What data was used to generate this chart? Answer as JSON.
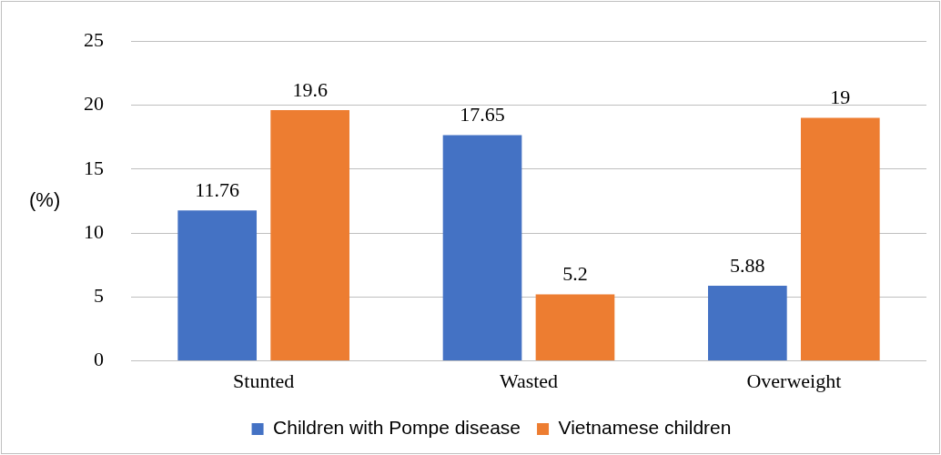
{
  "chart_data": {
    "type": "bar",
    "ylabel": "(%)",
    "categories": [
      "Stunted",
      "Wasted",
      "Overweight"
    ],
    "series": [
      {
        "name": "Children with Pompe disease",
        "color": "#4472c4",
        "values": [
          11.76,
          17.65,
          5.88
        ]
      },
      {
        "name": "Vietnamese children",
        "color": "#ed7d31",
        "values": [
          19.6,
          5.2,
          19
        ]
      }
    ],
    "ylim": [
      0,
      25
    ],
    "yticks": [
      0,
      5,
      10,
      15,
      20,
      25
    ],
    "grid": "y",
    "legend": "bottom",
    "data_labels": true
  }
}
